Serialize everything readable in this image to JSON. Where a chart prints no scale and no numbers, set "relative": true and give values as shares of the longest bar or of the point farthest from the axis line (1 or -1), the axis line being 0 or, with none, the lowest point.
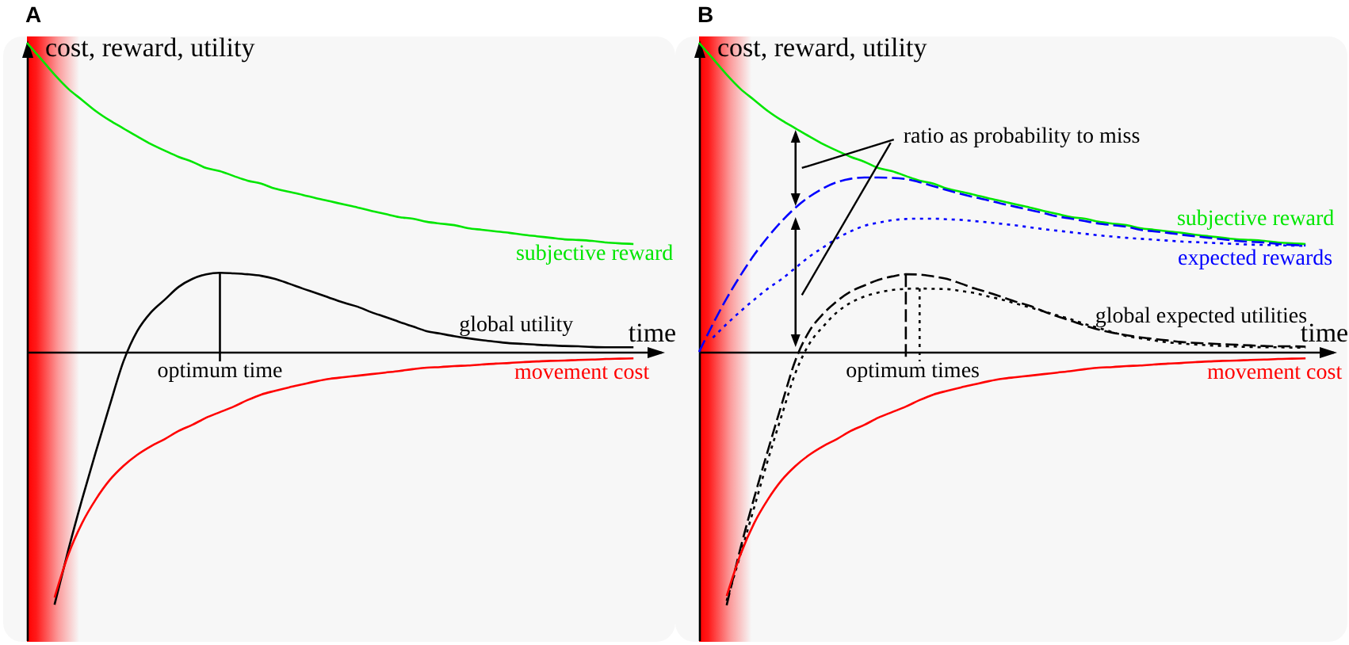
{
  "chart_data": [
    {
      "type": "line",
      "title": "A",
      "xlabel": "time",
      "ylabel": "cost, reward, utility",
      "relative": true,
      "categories": [
        null,
        null,
        null,
        null,
        null,
        null,
        null,
        null,
        null,
        null,
        null,
        null,
        null,
        null,
        null,
        null,
        null,
        null,
        null,
        null,
        null,
        null,
        null,
        null,
        null,
        null,
        null,
        null,
        null,
        null,
        null,
        null,
        null,
        null,
        null,
        null,
        null,
        null,
        null,
        null,
        null,
        null,
        null,
        null,
        null,
        null,
        null
      ],
      "series": [
        {
          "name": "subjective reward",
          "color": "#00e600",
          "values": [
            1.0,
            0.949,
            0.897,
            0.851,
            0.815,
            0.779,
            0.749,
            0.723,
            0.697,
            0.672,
            0.651,
            0.631,
            0.615,
            0.595,
            0.585,
            0.569,
            0.554,
            0.544,
            0.528,
            0.518,
            0.508,
            0.497,
            0.487,
            0.477,
            0.467,
            0.456,
            0.446,
            0.436,
            0.431,
            0.421,
            0.415,
            0.41,
            0.4,
            0.395,
            0.39,
            0.385,
            0.379,
            0.374,
            0.369,
            0.364,
            0.362,
            0.359,
            0.354,
            0.351,
            0.349,
            null,
            null
          ]
        },
        {
          "name": "global utility",
          "color": "#000000",
          "values": [
            null,
            null,
            -0.818,
            -0.641,
            -0.477,
            -0.323,
            -0.174,
            -0.031,
            0.067,
            0.128,
            0.169,
            0.21,
            0.236,
            0.251,
            0.256,
            0.254,
            0.251,
            0.246,
            0.236,
            0.221,
            0.205,
            0.19,
            0.174,
            0.159,
            0.146,
            0.128,
            0.113,
            0.097,
            0.082,
            0.067,
            0.059,
            0.051,
            0.044,
            0.038,
            0.033,
            0.028,
            0.026,
            0.023,
            0.021,
            0.019,
            0.018,
            0.016,
            0.015,
            0.015,
            0.015,
            null,
            null
          ]
        },
        {
          "name": "movement cost",
          "color": "#ff0000",
          "values": [
            null,
            null,
            -0.795,
            -0.656,
            -0.554,
            -0.477,
            -0.415,
            -0.369,
            -0.333,
            -0.305,
            -0.282,
            -0.256,
            -0.236,
            -0.213,
            -0.195,
            -0.177,
            -0.156,
            -0.138,
            -0.126,
            -0.115,
            -0.105,
            -0.095,
            -0.087,
            -0.082,
            -0.077,
            -0.072,
            -0.067,
            -0.062,
            -0.056,
            -0.051,
            -0.049,
            -0.046,
            -0.044,
            -0.041,
            -0.038,
            -0.036,
            -0.033,
            -0.031,
            -0.029,
            -0.028,
            -0.026,
            -0.025,
            -0.023,
            -0.022,
            -0.021,
            null,
            null
          ]
        }
      ],
      "annotations": [
        "optimum time"
      ]
    },
    {
      "type": "line",
      "title": "B",
      "xlabel": "time",
      "ylabel": "cost, reward, utility",
      "relative": true,
      "categories": [
        null,
        null,
        null,
        null,
        null,
        null,
        null,
        null,
        null,
        null,
        null,
        null,
        null,
        null,
        null,
        null,
        null,
        null,
        null,
        null,
        null,
        null,
        null,
        null,
        null,
        null,
        null,
        null,
        null,
        null,
        null,
        null,
        null,
        null,
        null,
        null,
        null,
        null,
        null,
        null,
        null,
        null,
        null,
        null,
        null,
        null,
        null
      ],
      "series": [
        {
          "name": "subjective reward",
          "color": "#00e600",
          "values": [
            1.0,
            0.949,
            0.897,
            0.851,
            0.815,
            0.779,
            0.749,
            0.723,
            0.697,
            0.672,
            0.651,
            0.631,
            0.615,
            0.595,
            0.585,
            0.569,
            0.554,
            0.544,
            0.528,
            0.518,
            0.508,
            0.497,
            0.487,
            0.477,
            0.467,
            0.456,
            0.446,
            0.436,
            0.431,
            0.421,
            0.415,
            0.41,
            0.4,
            0.395,
            0.39,
            0.385,
            0.379,
            0.374,
            0.369,
            0.364,
            0.362,
            0.359,
            0.354,
            0.351,
            0.349,
            null,
            null
          ]
        },
        {
          "name": "expected rewards",
          "color": "#0000ff",
          "line_style": "dashed",
          "values": [
            0.0,
            0.09,
            0.173,
            0.247,
            0.314,
            0.372,
            0.423,
            0.467,
            0.502,
            0.529,
            0.549,
            0.56,
            0.564,
            0.564,
            0.563,
            0.559,
            0.549,
            0.536,
            0.523,
            0.511,
            0.5,
            0.49,
            0.479,
            0.469,
            0.459,
            0.449,
            0.438,
            0.431,
            0.423,
            0.415,
            0.41,
            0.405,
            0.395,
            0.39,
            0.385,
            0.379,
            0.374,
            0.369,
            0.364,
            0.359,
            0.356,
            0.354,
            0.349,
            0.346,
            0.344,
            null,
            null
          ]
        },
        {
          "color": "#0000ff",
          "line_style": "dotted",
          "values": [
            null,
            0.046,
            0.09,
            0.131,
            0.169,
            0.205,
            0.236,
            0.272,
            0.308,
            0.338,
            0.367,
            0.39,
            0.408,
            0.418,
            0.426,
            0.43,
            0.431,
            0.431,
            0.429,
            0.427,
            0.423,
            0.419,
            0.414,
            0.409,
            0.403,
            0.397,
            0.392,
            0.387,
            0.382,
            0.377,
            0.373,
            0.369,
            0.366,
            0.363,
            0.36,
            0.357,
            0.355,
            0.353,
            0.351,
            0.349,
            0.347,
            0.346,
            0.345,
            0.344,
            0.343,
            null,
            null
          ]
        },
        {
          "name": "global expected utilities",
          "color": "#000000",
          "line_style": "dashed",
          "values": [
            null,
            null,
            -0.82,
            -0.636,
            -0.472,
            -0.318,
            -0.169,
            -0.026,
            0.067,
            0.123,
            0.164,
            0.195,
            0.215,
            0.233,
            0.244,
            0.251,
            0.25,
            0.244,
            0.236,
            0.221,
            0.205,
            0.192,
            0.177,
            0.162,
            0.149,
            0.131,
            0.115,
            0.1,
            0.085,
            0.072,
            0.062,
            0.054,
            0.047,
            0.042,
            0.037,
            0.032,
            0.029,
            0.027,
            0.025,
            0.023,
            0.021,
            0.019,
            0.018,
            0.018,
            0.017,
            null,
            null
          ]
        },
        {
          "color": "#000000",
          "line_style": "dotted",
          "values": [
            null,
            null,
            -0.805,
            -0.656,
            -0.503,
            -0.349,
            -0.205,
            -0.067,
            0.026,
            0.082,
            0.128,
            0.159,
            0.179,
            0.192,
            0.2,
            0.204,
            0.205,
            0.204,
            0.203,
            0.197,
            0.19,
            0.179,
            0.169,
            0.156,
            0.144,
            0.131,
            0.118,
            0.105,
            0.09,
            0.077,
            0.064,
            0.051,
            0.044,
            0.037,
            0.031,
            0.027,
            0.024,
            0.021,
            0.019,
            0.017,
            0.016,
            0.015,
            0.015,
            0.014,
            0.014,
            null,
            null
          ]
        },
        {
          "name": "movement cost",
          "color": "#ff0000",
          "values": [
            null,
            null,
            -0.79,
            -0.656,
            -0.554,
            -0.477,
            -0.415,
            -0.369,
            -0.333,
            -0.305,
            -0.282,
            -0.256,
            -0.236,
            -0.213,
            -0.195,
            -0.177,
            -0.156,
            -0.138,
            -0.126,
            -0.115,
            -0.105,
            -0.095,
            -0.087,
            -0.082,
            -0.077,
            -0.072,
            -0.067,
            -0.062,
            -0.056,
            -0.051,
            -0.049,
            -0.046,
            -0.044,
            -0.041,
            -0.038,
            -0.036,
            -0.033,
            -0.031,
            -0.029,
            -0.028,
            -0.026,
            -0.025,
            -0.023,
            -0.022,
            -0.021,
            null,
            null
          ]
        }
      ],
      "annotations": [
        "ratio as probability to miss",
        "optimum times"
      ]
    }
  ]
}
